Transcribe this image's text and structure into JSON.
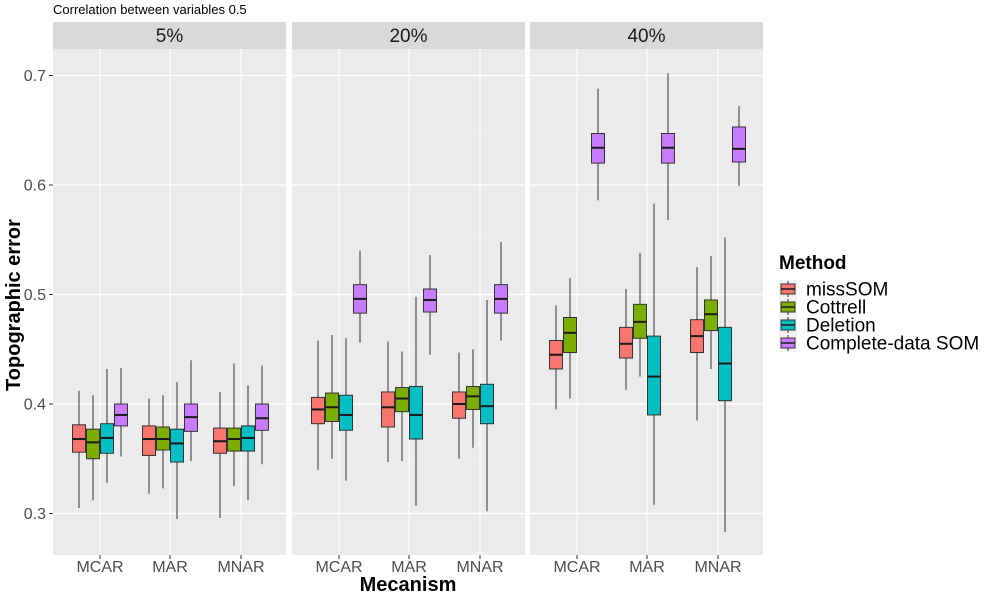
{
  "chart_data": {
    "type": "boxplot",
    "subtitle": "Correlation between variables 0.5",
    "xlabel": "Mecanism",
    "ylabel": "Topographic error",
    "ylim": [
      0.28,
      0.73
    ],
    "yticks": [
      0.3,
      0.4,
      0.5,
      0.6,
      0.7
    ],
    "yticklabels": [
      "0.3",
      "0.4",
      "0.5",
      "0.6",
      "0.7"
    ],
    "categories": [
      "MCAR",
      "MAR",
      "MNAR"
    ],
    "legend": {
      "title": "Method",
      "position": "right",
      "entries": [
        {
          "name": "missSOM",
          "color": "#F8766D"
        },
        {
          "name": "Cottrell",
          "color": "#7CAE00"
        },
        {
          "name": "Deletion",
          "color": "#00BFC4"
        },
        {
          "name": "Complete-data SOM",
          "color": "#C77CFF"
        }
      ]
    },
    "facets": [
      {
        "label": "5%",
        "groups": [
          {
            "category": "MCAR",
            "boxes": [
              {
                "method": "missSOM",
                "min": 0.305,
                "q1": 0.356,
                "median": 0.368,
                "q3": 0.381,
                "max": 0.412
              },
              {
                "method": "Cottrell",
                "min": 0.312,
                "q1": 0.35,
                "median": 0.365,
                "q3": 0.377,
                "max": 0.408
              },
              {
                "method": "Deletion",
                "min": 0.328,
                "q1": 0.355,
                "median": 0.369,
                "q3": 0.382,
                "max": 0.432
              },
              {
                "method": "Complete-data SOM",
                "min": 0.352,
                "q1": 0.38,
                "median": 0.39,
                "q3": 0.4,
                "max": 0.433
              }
            ]
          },
          {
            "category": "MAR",
            "boxes": [
              {
                "method": "missSOM",
                "min": 0.318,
                "q1": 0.353,
                "median": 0.368,
                "q3": 0.38,
                "max": 0.405
              },
              {
                "method": "Cottrell",
                "min": 0.323,
                "q1": 0.358,
                "median": 0.368,
                "q3": 0.379,
                "max": 0.408
              },
              {
                "method": "Deletion",
                "min": 0.295,
                "q1": 0.347,
                "median": 0.364,
                "q3": 0.377,
                "max": 0.42
              },
              {
                "method": "Complete-data SOM",
                "min": 0.348,
                "q1": 0.375,
                "median": 0.388,
                "q3": 0.4,
                "max": 0.44
              }
            ]
          },
          {
            "category": "MNAR",
            "boxes": [
              {
                "method": "missSOM",
                "min": 0.296,
                "q1": 0.355,
                "median": 0.366,
                "q3": 0.378,
                "max": 0.411
              },
              {
                "method": "Cottrell",
                "min": 0.325,
                "q1": 0.357,
                "median": 0.368,
                "q3": 0.378,
                "max": 0.437
              },
              {
                "method": "Deletion",
                "min": 0.312,
                "q1": 0.357,
                "median": 0.369,
                "q3": 0.38,
                "max": 0.417
              },
              {
                "method": "Complete-data SOM",
                "min": 0.345,
                "q1": 0.376,
                "median": 0.387,
                "q3": 0.4,
                "max": 0.435
              }
            ]
          }
        ]
      },
      {
        "label": "20%",
        "groups": [
          {
            "category": "MCAR",
            "boxes": [
              {
                "method": "missSOM",
                "min": 0.34,
                "q1": 0.382,
                "median": 0.395,
                "q3": 0.406,
                "max": 0.458
              },
              {
                "method": "Cottrell",
                "min": 0.35,
                "q1": 0.384,
                "median": 0.397,
                "q3": 0.41,
                "max": 0.463
              },
              {
                "method": "Deletion",
                "min": 0.33,
                "q1": 0.376,
                "median": 0.39,
                "q3": 0.408,
                "max": 0.46
              },
              {
                "method": "Complete-data SOM",
                "min": 0.456,
                "q1": 0.483,
                "median": 0.496,
                "q3": 0.509,
                "max": 0.54
              }
            ]
          },
          {
            "category": "MAR",
            "boxes": [
              {
                "method": "missSOM",
                "min": 0.347,
                "q1": 0.379,
                "median": 0.397,
                "q3": 0.411,
                "max": 0.457
              },
              {
                "method": "Cottrell",
                "min": 0.348,
                "q1": 0.393,
                "median": 0.405,
                "q3": 0.415,
                "max": 0.448
              },
              {
                "method": "Deletion",
                "min": 0.307,
                "q1": 0.368,
                "median": 0.39,
                "q3": 0.416,
                "max": 0.498
              },
              {
                "method": "Complete-data SOM",
                "min": 0.445,
                "q1": 0.484,
                "median": 0.495,
                "q3": 0.505,
                "max": 0.536
              }
            ]
          },
          {
            "category": "MNAR",
            "boxes": [
              {
                "method": "missSOM",
                "min": 0.35,
                "q1": 0.387,
                "median": 0.4,
                "q3": 0.411,
                "max": 0.447
              },
              {
                "method": "Cottrell",
                "min": 0.36,
                "q1": 0.395,
                "median": 0.407,
                "q3": 0.416,
                "max": 0.45
              },
              {
                "method": "Deletion",
                "min": 0.302,
                "q1": 0.382,
                "median": 0.398,
                "q3": 0.418,
                "max": 0.495
              },
              {
                "method": "Complete-data SOM",
                "min": 0.458,
                "q1": 0.483,
                "median": 0.496,
                "q3": 0.509,
                "max": 0.548
              }
            ]
          }
        ]
      },
      {
        "label": "40%",
        "groups": [
          {
            "category": "MCAR",
            "boxes": [
              {
                "method": "missSOM",
                "min": 0.395,
                "q1": 0.432,
                "median": 0.445,
                "q3": 0.458,
                "max": 0.49
              },
              {
                "method": "Cottrell",
                "min": 0.405,
                "q1": 0.447,
                "median": 0.465,
                "q3": 0.479,
                "max": 0.515
              },
              {
                "method": "Complete-data SOM",
                "min": 0.586,
                "q1": 0.62,
                "median": 0.634,
                "q3": 0.647,
                "max": 0.688
              }
            ]
          },
          {
            "category": "MAR",
            "boxes": [
              {
                "method": "missSOM",
                "min": 0.413,
                "q1": 0.442,
                "median": 0.455,
                "q3": 0.47,
                "max": 0.505
              },
              {
                "method": "Cottrell",
                "min": 0.425,
                "q1": 0.46,
                "median": 0.475,
                "q3": 0.491,
                "max": 0.538
              },
              {
                "method": "Deletion",
                "min": 0.308,
                "q1": 0.39,
                "median": 0.425,
                "q3": 0.462,
                "max": 0.583
              },
              {
                "method": "Complete-data SOM",
                "min": 0.568,
                "q1": 0.62,
                "median": 0.634,
                "q3": 0.647,
                "max": 0.702
              }
            ]
          },
          {
            "category": "MNAR",
            "boxes": [
              {
                "method": "missSOM",
                "min": 0.385,
                "q1": 0.447,
                "median": 0.462,
                "q3": 0.477,
                "max": 0.525
              },
              {
                "method": "Cottrell",
                "min": 0.432,
                "q1": 0.467,
                "median": 0.482,
                "q3": 0.495,
                "max": 0.535
              },
              {
                "method": "Deletion",
                "min": 0.283,
                "q1": 0.403,
                "median": 0.437,
                "q3": 0.47,
                "max": 0.552
              },
              {
                "method": "Complete-data SOM",
                "min": 0.599,
                "q1": 0.621,
                "median": 0.633,
                "q3": 0.653,
                "max": 0.672
              }
            ]
          }
        ]
      }
    ]
  }
}
